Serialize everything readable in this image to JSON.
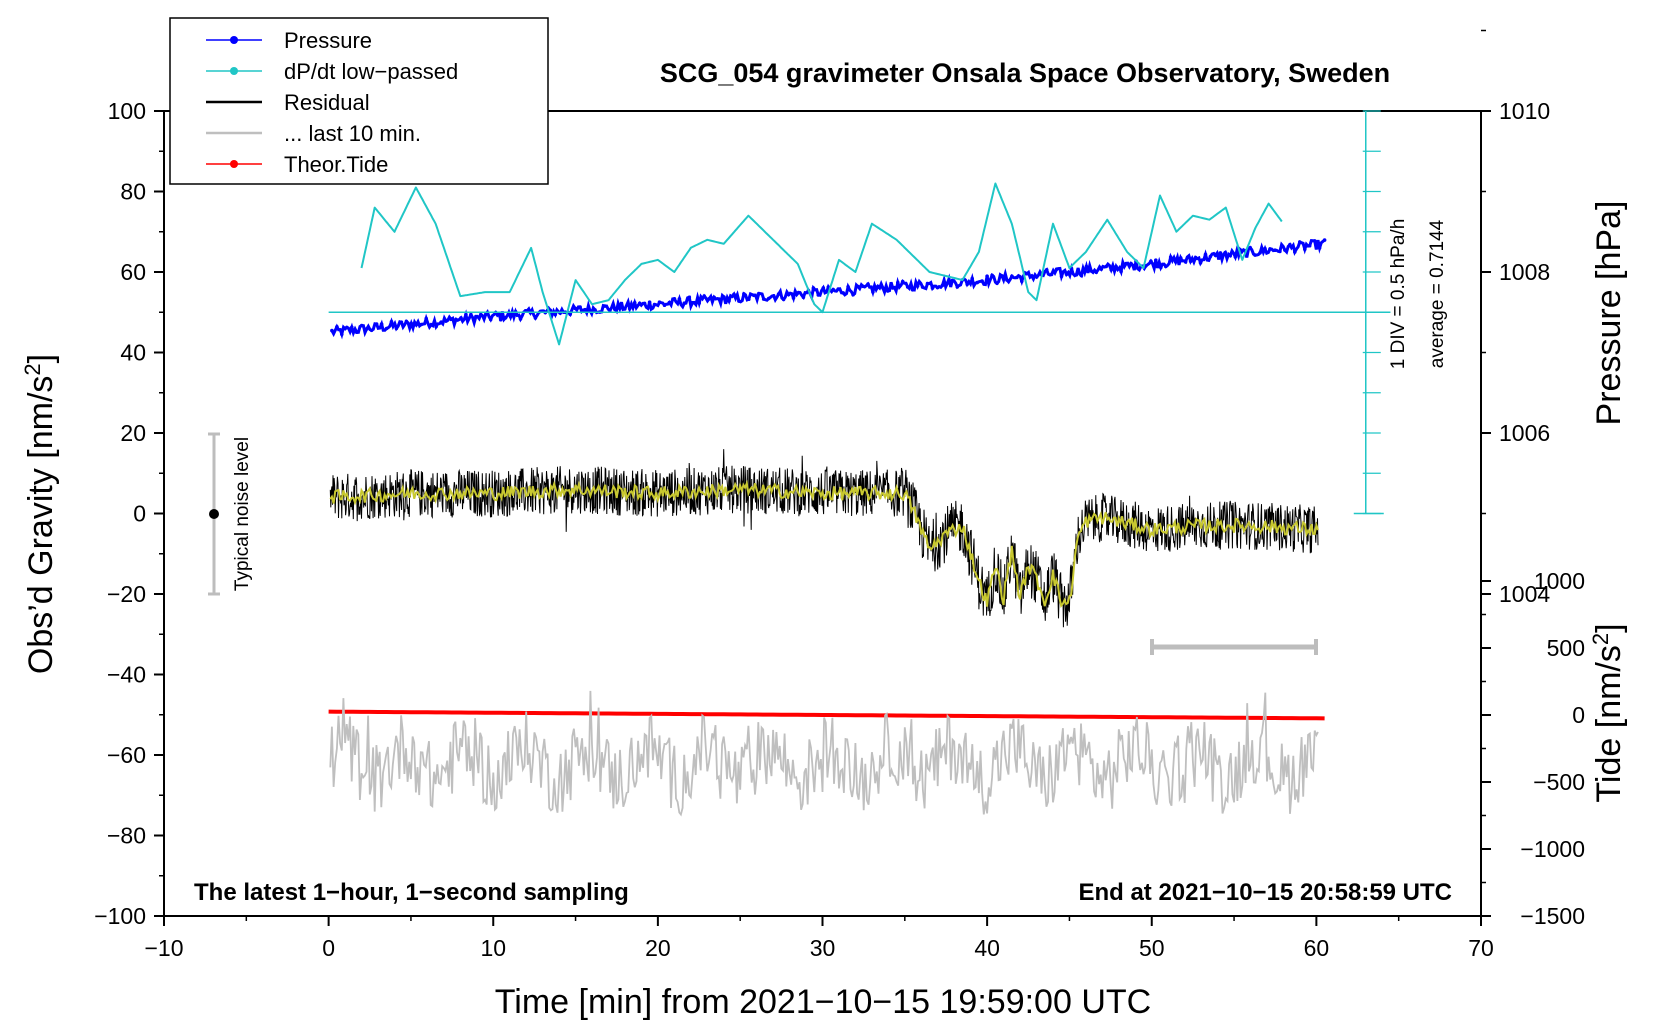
{
  "chart_data": {
    "type": "line",
    "title": "SCG_054 gravimeter Onsala Space Observatory, Sweden",
    "xlabel": "Time [min] from 2021−10−15 19:59:00 UTC",
    "ylabel_left": "Obs’d Gravity [nm/s",
    "ylabel_left_sup": "2",
    "ylabel_left_end": "]",
    "ylabel_right_pressure": "Pressure [hPa]",
    "ylabel_right_tide": "Tide [nm/s",
    "ylabel_right_tide_sup": "2",
    "ylabel_right_tide_end": "]",
    "xlim": [
      -10,
      70
    ],
    "ylim_left": [
      -100,
      100
    ],
    "x_ticks": [
      "−10",
      "0",
      "10",
      "20",
      "30",
      "40",
      "50",
      "60",
      "70"
    ],
    "y_ticks_left": [
      "100",
      "80",
      "60",
      "40",
      "20",
      "0",
      "−20",
      "−40",
      "−60",
      "−80",
      "−100"
    ],
    "pressure_ticks": [
      "1010",
      "1008",
      "1006",
      "1004"
    ],
    "tide_ticks": [
      "1000",
      "500",
      "0",
      "−500",
      "−1000",
      "−1500"
    ],
    "annotation_left": "The latest 1−hour, 1−second sampling",
    "annotation_right": "End at 2021−10−15 20:58:59 UTC",
    "noise_label": "Typical noise level",
    "dpdt_scale_label": "1 DIV = 0.5 hPa/h",
    "dpdt_average_label": "average = 0.7144",
    "legend": [
      "Pressure",
      "dP/dt low−passed",
      "Residual",
      "... last 10 min.",
      "Theor.Tide"
    ],
    "colors": {
      "pressure": "#0000ff",
      "dpdt": "#20c6c6",
      "residual": "#000000",
      "last10": "#bfbfbf",
      "tide": "#ff0000",
      "smooth": "#c8c830"
    },
    "series": [
      {
        "name": "Pressure",
        "note": "values in hPa (right axis)",
        "x": [
          0,
          10,
          20,
          30,
          40,
          50,
          60.5
        ],
        "values": [
          1007.25,
          1007.45,
          1007.6,
          1007.75,
          1007.9,
          1008.1,
          1008.35
        ]
      },
      {
        "name": "dP/dt low−passed",
        "note": "values on left-axis scale",
        "x": [
          2,
          2.8,
          4,
          5.3,
          6.5,
          8,
          9.5,
          11,
          12.3,
          13,
          14,
          15,
          16,
          17,
          18,
          19,
          20,
          21,
          22,
          23,
          24,
          25.5,
          27,
          28.5,
          29.5,
          30,
          31,
          32,
          33,
          34.5,
          35.5,
          36.5,
          37.5,
          38.5,
          39.5,
          40.5,
          41.5,
          42.5,
          43,
          44,
          45,
          46,
          47.3,
          48.5,
          49.5,
          50.5,
          51.5,
          52.5,
          53.5,
          54.5,
          55.5,
          56.3,
          57.1,
          58
        ],
        "values": [
          61,
          76,
          70,
          81,
          72,
          54,
          55,
          55,
          66,
          55,
          42,
          58,
          52,
          53,
          58,
          62,
          63,
          60,
          66,
          68,
          67,
          74,
          68,
          62,
          52,
          50,
          63,
          60,
          72,
          68,
          64,
          60,
          59,
          58,
          65,
          82,
          72,
          55,
          53,
          72,
          61,
          65,
          73,
          65,
          61,
          79,
          70,
          74,
          73,
          76,
          63,
          71,
          77,
          72
        ]
      },
      {
        "name": "Residual",
        "note": "values in nm/s^2 (left axis), smoothed trend",
        "x": [
          0,
          5,
          10,
          15,
          20,
          25,
          30,
          33,
          35,
          35.6,
          36.5,
          37.5,
          38.5,
          39.5,
          40,
          40.5,
          41,
          41.5,
          42,
          42.5,
          43,
          43.5,
          44,
          44.5,
          45,
          45.5,
          46,
          47,
          50,
          53,
          56,
          60
        ],
        "values": [
          4,
          5,
          5,
          6,
          5,
          6,
          5,
          5,
          5,
          0,
          -9,
          -5,
          -3,
          -17,
          -22,
          -13,
          -21,
          -9,
          -21,
          -13,
          -16,
          -22,
          -15,
          -22,
          -22,
          -6,
          -2,
          -1,
          -4,
          -3,
          -3,
          -4
        ]
      },
      {
        "name": "... last 10 min.",
        "note": "gray trace, left-axis scale",
        "x": [
          0,
          60
        ],
        "values": [
          -62,
          -62
        ]
      },
      {
        "name": "Theor.Tide",
        "note": "values in nm/s^2 (tide axis)",
        "x": [
          0,
          60.5
        ],
        "values": [
          25,
          -25
        ]
      }
    ]
  }
}
